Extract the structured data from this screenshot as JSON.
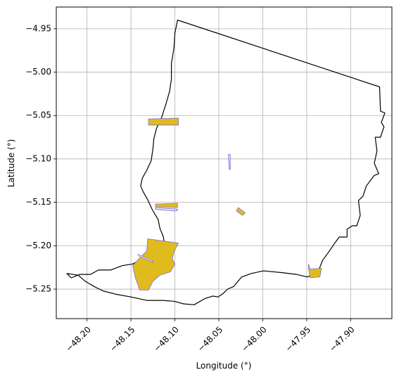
{
  "chart_data": {
    "type": "map",
    "xlabel": "Longitude (°)",
    "ylabel": "Latitude (°)",
    "xlim": [
      -48.235,
      -47.853
    ],
    "ylim": [
      -5.284,
      -4.925
    ],
    "grid": true,
    "x_ticks": [
      -48.2,
      -48.15,
      -48.1,
      -48.05,
      -48.0,
      -47.95,
      -47.9,
      -47.85
    ],
    "x_tick_labels": [
      "−48.20",
      "−48.15",
      "−48.10",
      "−48.05",
      "−48.00",
      "−47.95",
      "−47.90",
      "−47.85"
    ],
    "y_ticks": [
      -4.95,
      -5.0,
      -5.05,
      -5.1,
      -5.15,
      -5.2,
      -5.25
    ],
    "y_tick_labels": [
      "−4.95",
      "−5.00",
      "−5.05",
      "−5.10",
      "−5.15",
      "−5.20",
      "−5.25"
    ],
    "colors": {
      "boundary": "#000000",
      "fill": "#e0bb1e",
      "highlight_edge": "#7b6fd6",
      "grid": "#b0b0b0"
    },
    "boundary": [
      [
        -48.097,
        -4.94
      ],
      [
        -47.867,
        -5.017
      ],
      [
        -47.866,
        -5.045
      ],
      [
        -47.861,
        -5.047
      ],
      [
        -47.865,
        -5.058
      ],
      [
        -47.862,
        -5.063
      ],
      [
        -47.866,
        -5.075
      ],
      [
        -47.872,
        -5.075
      ],
      [
        -47.87,
        -5.091
      ],
      [
        -47.873,
        -5.105
      ],
      [
        -47.868,
        -5.117
      ],
      [
        -47.873,
        -5.119
      ],
      [
        -47.882,
        -5.131
      ],
      [
        -47.886,
        -5.143
      ],
      [
        -47.891,
        -5.148
      ],
      [
        -47.889,
        -5.165
      ],
      [
        -47.893,
        -5.177
      ],
      [
        -47.898,
        -5.177
      ],
      [
        -47.904,
        -5.181
      ],
      [
        -47.904,
        -5.19
      ],
      [
        -47.913,
        -5.19
      ],
      [
        -47.918,
        -5.197
      ],
      [
        -47.924,
        -5.206
      ],
      [
        -47.932,
        -5.217
      ],
      [
        -47.937,
        -5.23
      ],
      [
        -47.949,
        -5.236
      ],
      [
        -47.962,
        -5.233
      ],
      [
        -47.978,
        -5.231
      ],
      [
        -47.999,
        -5.229
      ],
      [
        -48.013,
        -5.232
      ],
      [
        -48.024,
        -5.236
      ],
      [
        -48.033,
        -5.247
      ],
      [
        -48.04,
        -5.25
      ],
      [
        -48.045,
        -5.255
      ],
      [
        -48.051,
        -5.259
      ],
      [
        -48.057,
        -5.258
      ],
      [
        -48.066,
        -5.261
      ],
      [
        -48.078,
        -5.268
      ],
      [
        -48.09,
        -5.267
      ],
      [
        -48.101,
        -5.264
      ],
      [
        -48.114,
        -5.263
      ],
      [
        -48.132,
        -5.263
      ],
      [
        -48.15,
        -5.259
      ],
      [
        -48.167,
        -5.256
      ],
      [
        -48.182,
        -5.252
      ],
      [
        -48.192,
        -5.247
      ],
      [
        -48.202,
        -5.241
      ],
      [
        -48.21,
        -5.234
      ],
      [
        -48.223,
        -5.232
      ],
      [
        -48.218,
        -5.237
      ],
      [
        -48.208,
        -5.233
      ],
      [
        -48.196,
        -5.233
      ],
      [
        -48.187,
        -5.228
      ],
      [
        -48.173,
        -5.228
      ],
      [
        -48.16,
        -5.223
      ],
      [
        -48.148,
        -5.221
      ],
      [
        -48.133,
        -5.213
      ],
      [
        -48.118,
        -5.205
      ],
      [
        -48.112,
        -5.2
      ],
      [
        -48.113,
        -5.19
      ],
      [
        -48.117,
        -5.18
      ],
      [
        -48.119,
        -5.17
      ],
      [
        -48.126,
        -5.158
      ],
      [
        -48.131,
        -5.147
      ],
      [
        -48.136,
        -5.138
      ],
      [
        -48.139,
        -5.131
      ],
      [
        -48.137,
        -5.122
      ],
      [
        -48.132,
        -5.113
      ],
      [
        -48.127,
        -5.102
      ],
      [
        -48.125,
        -5.088
      ],
      [
        -48.124,
        -5.077
      ],
      [
        -48.121,
        -5.065
      ],
      [
        -48.115,
        -5.052
      ],
      [
        -48.11,
        -5.036
      ],
      [
        -48.106,
        -5.022
      ],
      [
        -48.104,
        -5.008
      ],
      [
        -48.104,
        -4.99
      ],
      [
        -48.101,
        -4.972
      ],
      [
        -48.1,
        -4.955
      ],
      [
        -48.098,
        -4.945
      ],
      [
        -48.097,
        -4.94
      ]
    ],
    "features": [
      {
        "kind": "fill",
        "points": [
          [
            -48.13,
            -5.054
          ],
          [
            -48.096,
            -5.053
          ],
          [
            -48.096,
            -5.061
          ],
          [
            -48.13,
            -5.061
          ]
        ]
      },
      {
        "kind": "fill",
        "points": [
          [
            -48.131,
            -5.192
          ],
          [
            -48.096,
            -5.197
          ],
          [
            -48.101,
            -5.207
          ],
          [
            -48.103,
            -5.215
          ],
          [
            -48.1,
            -5.221
          ],
          [
            -48.105,
            -5.23
          ],
          [
            -48.117,
            -5.234
          ],
          [
            -48.125,
            -5.241
          ],
          [
            -48.13,
            -5.251
          ],
          [
            -48.14,
            -5.251
          ],
          [
            -48.145,
            -5.237
          ],
          [
            -48.148,
            -5.223
          ],
          [
            -48.14,
            -5.214
          ],
          [
            -48.132,
            -5.206
          ]
        ]
      },
      {
        "kind": "hole",
        "points": [
          [
            -48.142,
            -5.21
          ],
          [
            -48.126,
            -5.217
          ],
          [
            -48.125,
            -5.219
          ],
          [
            -48.141,
            -5.212
          ]
        ]
      },
      {
        "kind": "fill",
        "points": [
          [
            -48.122,
            -5.152
          ],
          [
            -48.097,
            -5.151
          ],
          [
            -48.097,
            -5.156
          ],
          [
            -48.122,
            -5.155
          ]
        ]
      },
      {
        "kind": "outline",
        "points": [
          [
            -48.122,
            -5.156
          ],
          [
            -48.097,
            -5.158
          ],
          [
            -48.098,
            -5.16
          ],
          [
            -48.122,
            -5.158
          ]
        ]
      },
      {
        "kind": "fill",
        "points": [
          [
            -48.028,
            -5.156
          ],
          [
            -48.02,
            -5.162
          ],
          [
            -48.023,
            -5.165
          ],
          [
            -48.03,
            -5.16
          ]
        ]
      },
      {
        "kind": "outline",
        "points": [
          [
            -48.039,
            -5.095
          ],
          [
            -48.037,
            -5.095
          ],
          [
            -48.037,
            -5.112
          ],
          [
            -48.038,
            -5.112
          ]
        ]
      },
      {
        "kind": "fill",
        "points": [
          [
            -47.948,
            -5.221
          ],
          [
            -47.946,
            -5.227
          ],
          [
            -47.933,
            -5.226
          ],
          [
            -47.935,
            -5.236
          ],
          [
            -47.946,
            -5.237
          ],
          [
            -47.948,
            -5.226
          ]
        ]
      }
    ]
  }
}
